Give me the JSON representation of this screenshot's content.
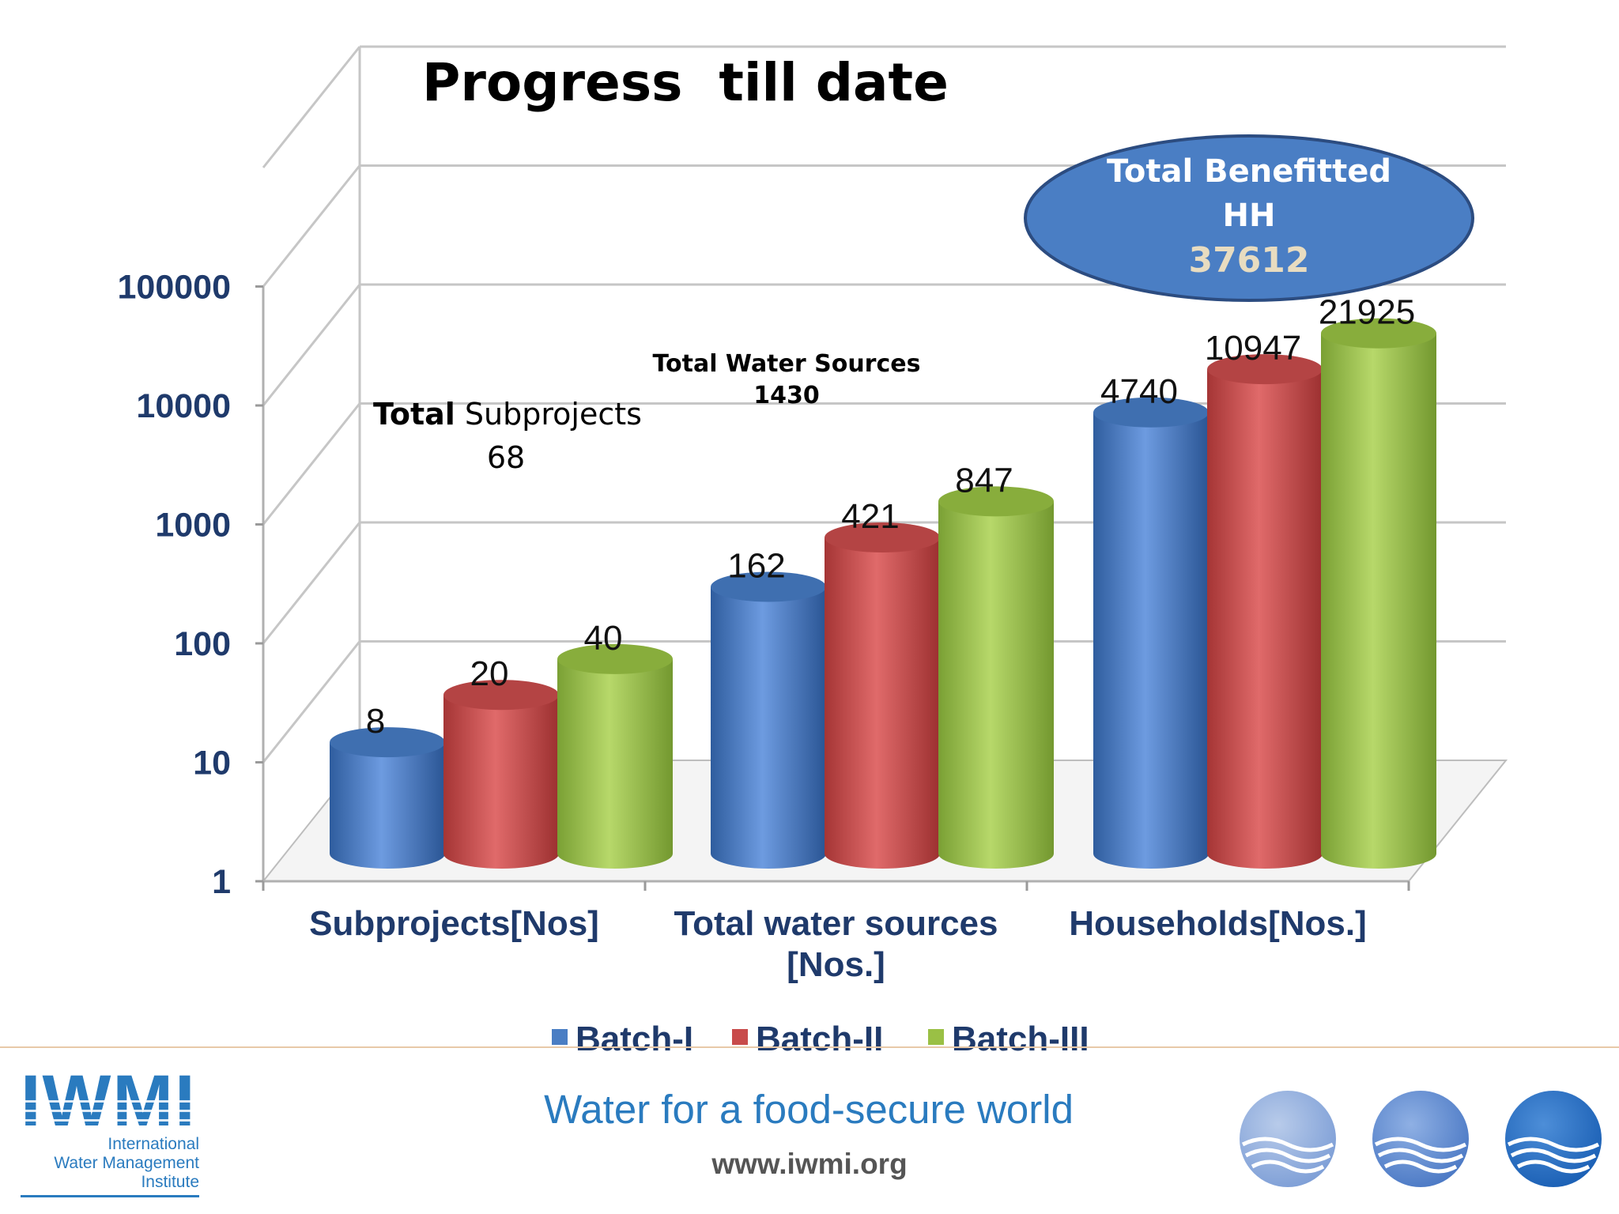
{
  "title": "Progress  till date",
  "chart_data": {
    "type": "bar",
    "scale": "log",
    "ylim": [
      1,
      100000
    ],
    "yticks": [
      "1",
      "10",
      "100",
      "1000",
      "10000",
      "100000"
    ],
    "categories": [
      "Subprojects[Nos]",
      "Total water sources [Nos.]",
      "Households[Nos.]"
    ],
    "category_lines": [
      [
        "Subprojects[Nos]"
      ],
      [
        "Total water sources",
        "[Nos.]"
      ],
      [
        "Households[Nos.]"
      ]
    ],
    "series": [
      {
        "name": "Batch-I",
        "values": [
          8,
          162,
          4740
        ],
        "color": "#4a7ec4"
      },
      {
        "name": "Batch-II",
        "values": [
          20,
          421,
          10947
        ],
        "color": "#c84b4b"
      },
      {
        "name": "Batch-III",
        "values": [
          40,
          847,
          21925
        ],
        "color": "#9ac045"
      }
    ],
    "legend_position": "bottom",
    "grid": true
  },
  "annotations": {
    "subprojects_bold": "Total",
    "subprojects_rest": " Subprojects",
    "subprojects_value": "68",
    "water_label": "Total Water Sources",
    "water_value": "1430",
    "callout_line1": "Total Benefitted",
    "callout_line2": "HH",
    "callout_value": "37612"
  },
  "footer": {
    "logo_text": "IWMI",
    "logo_line1": "International",
    "logo_line2": "Water Management",
    "logo_line3": "Institute",
    "tagline": "Water for a food-secure world",
    "url": "www.iwmi.org"
  },
  "colors": {
    "accent": "#2a7bbf",
    "axis_text": "#1f3a6b",
    "callout": "#4a7ec4"
  }
}
